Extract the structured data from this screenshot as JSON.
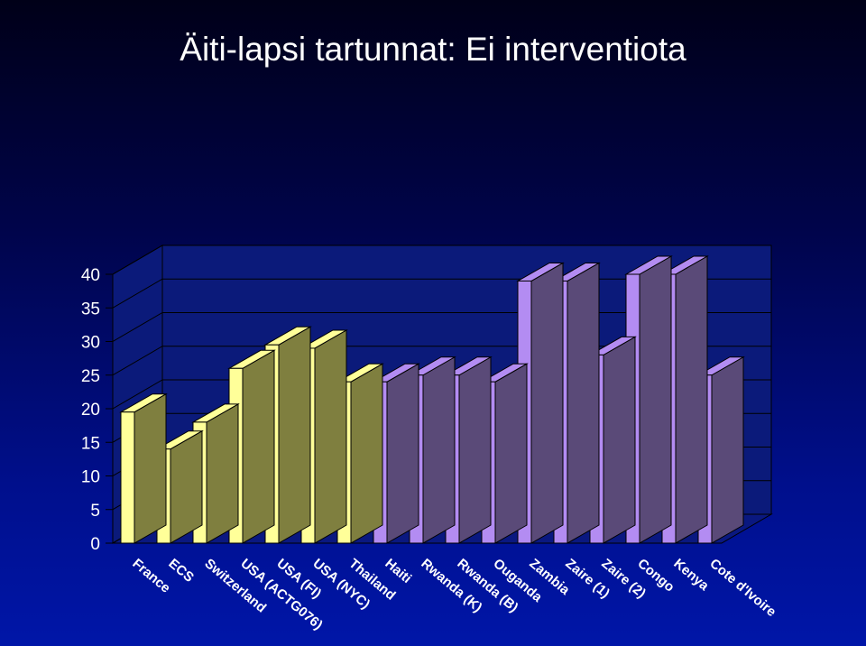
{
  "title": "Äiti-lapsi tartunnat: Ei interventiota",
  "colors": {
    "group1_front": "#ffff99",
    "group1_side": "#7f7f3f",
    "group2_front": "#b38cf2",
    "group2_side": "#5a4a78",
    "gridline": "#000000",
    "wall": "#0b1a7a",
    "text": "#ffffff"
  },
  "chart_data": {
    "type": "bar",
    "categories": [
      "France",
      "ECS",
      "Switzerland",
      "USA (ACTG076)",
      "USA (FI)",
      "USA (NYC)",
      "Thailand",
      "Haiti",
      "Rwanda (K)",
      "Rwanda (B)",
      "Ouganda",
      "Zambia",
      "Zaire (1)",
      "Zaire (2)",
      "Congo",
      "Kenya",
      "Cote d'Ivoire"
    ],
    "values": [
      19.5,
      14,
      18,
      26,
      29.5,
      29,
      24,
      24,
      25,
      25,
      24,
      39,
      39,
      28,
      40,
      40,
      25
    ],
    "group": [
      1,
      1,
      1,
      1,
      1,
      1,
      1,
      2,
      2,
      2,
      2,
      2,
      2,
      2,
      2,
      2,
      2
    ],
    "y_ticks": [
      "0",
      "5",
      "10",
      "15",
      "20",
      "25",
      "30",
      "35",
      "40"
    ],
    "ylim": [
      0,
      40
    ],
    "grid": true,
    "style": "3d-column"
  }
}
